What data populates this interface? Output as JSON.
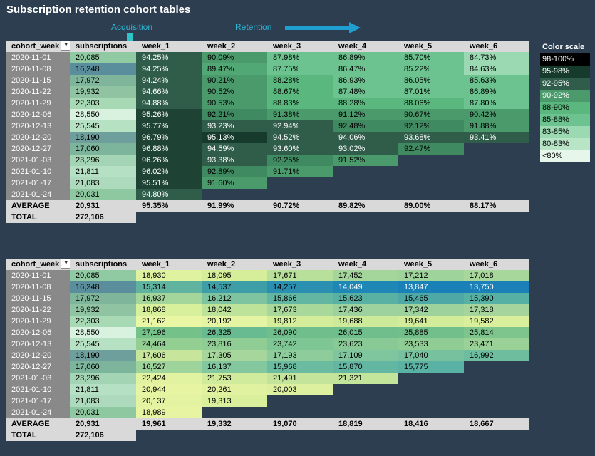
{
  "title": "Subscription retention cohort tables",
  "labels": {
    "acquisition": "Acquisition",
    "retention": "Retention"
  },
  "headers": [
    "cohort_week",
    "subscriptions",
    "week_1",
    "week_2",
    "week_3",
    "week_4",
    "week_5",
    "week_6"
  ],
  "cohorts": [
    "2020-11-01",
    "2020-11-08",
    "2020-11-15",
    "2020-11-22",
    "2020-11-29",
    "2020-12-06",
    "2020-12-13",
    "2020-12-20",
    "2020-12-27",
    "2021-01-03",
    "2021-01-10",
    "2021-01-17",
    "2021-01-24"
  ],
  "subscriptions": [
    "20,085",
    "16,248",
    "17,972",
    "19,932",
    "22,303",
    "28,550",
    "25,545",
    "18,190",
    "17,060",
    "23,296",
    "21,811",
    "21,083",
    "20,031"
  ],
  "subscription_colors": [
    "#8fcaa2",
    "#5b8e9c",
    "#7fb59a",
    "#8fc3a2",
    "#a8d9b5",
    "#d9f1df",
    "#b7e1c3",
    "#6e9f9c",
    "#7db49c",
    "#a3d4b3",
    "#b6e0c3",
    "#add9bc",
    "#8dc8a0"
  ],
  "retention": [
    [
      "94.25%",
      "90.09%",
      "87.98%",
      "86.89%",
      "85.70%",
      "84.73%"
    ],
    [
      "94.25%",
      "89.47%",
      "87.75%",
      "86.47%",
      "85.22%",
      "84.63%"
    ],
    [
      "94.24%",
      "90.21%",
      "88.28%",
      "86.93%",
      "86.05%",
      "85.63%"
    ],
    [
      "94.66%",
      "90.52%",
      "88.67%",
      "87.48%",
      "87.01%",
      "86.89%"
    ],
    [
      "94.88%",
      "90.53%",
      "88.83%",
      "88.28%",
      "88.06%",
      "87.80%"
    ],
    [
      "95.26%",
      "92.21%",
      "91.38%",
      "91.12%",
      "90.67%",
      "90.42%"
    ],
    [
      "95.77%",
      "93.23%",
      "92.94%",
      "92.48%",
      "92.12%",
      "91.88%"
    ],
    [
      "96.79%",
      "95.13%",
      "94.52%",
      "94.06%",
      "93.68%",
      "93.41%"
    ],
    [
      "96.88%",
      "94.59%",
      "93.60%",
      "93.02%",
      "92.47%"
    ],
    [
      "96.26%",
      "93.38%",
      "92.25%",
      "91.52%"
    ],
    [
      "96.02%",
      "92.89%",
      "91.71%"
    ],
    [
      "95.51%",
      "91.60%"
    ],
    [
      "94.80%"
    ]
  ],
  "retention_colors": [
    [
      "#2f5d4a",
      "#4a9a6c",
      "#6cc38f",
      "#6cc38f",
      "#6cc38f",
      "#9ad9b1"
    ],
    [
      "#2f5d4a",
      "#52a874",
      "#6cc38f",
      "#6cc38f",
      "#6cc38f",
      "#9ad9b1"
    ],
    [
      "#2f5d4a",
      "#4a9a6c",
      "#5ab87e",
      "#6cc38f",
      "#6cc38f",
      "#6cc38f"
    ],
    [
      "#2f5d4a",
      "#4a9a6c",
      "#5ab87e",
      "#6cc38f",
      "#6cc38f",
      "#6cc38f"
    ],
    [
      "#2f5d4a",
      "#4a9a6c",
      "#5ab87e",
      "#5ab87e",
      "#5ab87e",
      "#6cc38f"
    ],
    [
      "#1e4233",
      "#3f8a60",
      "#4a9a6c",
      "#4a9a6c",
      "#4a9a6c",
      "#4a9a6c"
    ],
    [
      "#1e4233",
      "#2f5d4a",
      "#2f5d4a",
      "#3f8a60",
      "#3f8a60",
      "#4a9a6c"
    ],
    [
      "#1e4233",
      "#163a2b",
      "#2f5d4a",
      "#2f5d4a",
      "#2f5d4a",
      "#2f5d4a"
    ],
    [
      "#1e4233",
      "#2f5d4a",
      "#2f5d4a",
      "#2f5d4a",
      "#3f8a60"
    ],
    [
      "#1e4233",
      "#2f5d4a",
      "#3f8a60",
      "#4a9a6c"
    ],
    [
      "#1e4233",
      "#3f8a60",
      "#4a9a6c"
    ],
    [
      "#1e4233",
      "#4a9a6c"
    ],
    [
      "#2f5d4a"
    ]
  ],
  "retention_average": [
    "AVERAGE",
    "20,931",
    "95.35%",
    "91.99%",
    "90.72%",
    "89.82%",
    "89.00%",
    "88.17%"
  ],
  "total": [
    "TOTAL",
    "272,106"
  ],
  "counts": [
    [
      "18,930",
      "18,095",
      "17,671",
      "17,452",
      "17,212",
      "17,018"
    ],
    [
      "15,314",
      "14,537",
      "14,257",
      "14,049",
      "13,847",
      "13,750"
    ],
    [
      "16,937",
      "16,212",
      "15,866",
      "15,623",
      "15,465",
      "15,390"
    ],
    [
      "18,868",
      "18,042",
      "17,673",
      "17,436",
      "17,342",
      "17,318"
    ],
    [
      "21,162",
      "20,192",
      "19,812",
      "19,688",
      "19,641",
      "19,582"
    ],
    [
      "27,196",
      "26,325",
      "26,090",
      "26,015",
      "25,885",
      "25,814"
    ],
    [
      "24,464",
      "23,816",
      "23,742",
      "23,623",
      "23,533",
      "23,471"
    ],
    [
      "17,606",
      "17,305",
      "17,193",
      "17,109",
      "17,040",
      "16,992"
    ],
    [
      "16,527",
      "16,137",
      "15,968",
      "15,870",
      "15,775"
    ],
    [
      "22,424",
      "21,753",
      "21,491",
      "21,321"
    ],
    [
      "20,944",
      "20,261",
      "20,003"
    ],
    [
      "20,137",
      "19,313"
    ],
    [
      "18,989"
    ]
  ],
  "count_colors": [
    [
      "#dff2a0",
      "#d6ee9a",
      "#b9e09a",
      "#a4d69c",
      "#9fd39c",
      "#a8d79b"
    ],
    [
      "#5fb39f",
      "#3d9ea8",
      "#2a8fb0",
      "#1f87b6",
      "#1a80b8",
      "#1b80b8"
    ],
    [
      "#a4d69c",
      "#7ec4a0",
      "#62b6a2",
      "#58b1a3",
      "#4ea9a6",
      "#56b0a4"
    ],
    [
      "#d8ef9b",
      "#bde29a",
      "#a9d89b",
      "#9dd19d",
      "#9ed29d",
      "#a5d59c"
    ],
    [
      "#e9f6a3",
      "#e4f4a2",
      "#d4ed9b",
      "#cdea9a",
      "#d3ec9a",
      "#d9ef9b"
    ],
    [
      "#74c18a",
      "#68bb90",
      "#6fbe8c",
      "#6fbe8c",
      "#72bf8b",
      "#7ec58d"
    ],
    [
      "#93cf93",
      "#8fcd94",
      "#7fc695",
      "#88c995",
      "#8fcd94",
      "#9ad197"
    ],
    [
      "#c7e69b",
      "#a6d69c",
      "#8ecc9c",
      "#7fc59e",
      "#77c19e",
      "#6ebd9f"
    ],
    [
      "#9fd39c",
      "#83c79e",
      "#6abba0",
      "#63b7a2",
      "#5ab2a4"
    ],
    [
      "#e1f2a0",
      "#d0eb9b",
      "#c4e49b",
      "#c2e49b"
    ],
    [
      "#e7f5a2",
      "#e0f2a0",
      "#dcf0a0"
    ],
    [
      "#e3f3a1",
      "#d9ef9b"
    ],
    [
      "#e7f5a2"
    ]
  ],
  "count_average": [
    "AVERAGE",
    "20,931",
    "19,961",
    "19,332",
    "19,070",
    "18,819",
    "18,416",
    "18,667"
  ],
  "legend": {
    "title": "Color scale",
    "items": [
      {
        "label": "98-100%",
        "bg": "#000000",
        "fg": "#ffffff"
      },
      {
        "label": "95-98%",
        "bg": "#163a2b",
        "fg": "#ffffff"
      },
      {
        "label": "92-95%",
        "bg": "#2f5d4a",
        "fg": "#ffffff"
      },
      {
        "label": "90-92%",
        "bg": "#4a9a6c",
        "fg": "#ffffff"
      },
      {
        "label": "88-90%",
        "bg": "#5ab87e",
        "fg": "#000000"
      },
      {
        "label": "85-88%",
        "bg": "#6cc38f",
        "fg": "#000000"
      },
      {
        "label": "83-85%",
        "bg": "#9ad9b1",
        "fg": "#000000"
      },
      {
        "label": "80-83%",
        "bg": "#b8e5c6",
        "fg": "#000000"
      },
      {
        "label": "<80%",
        "bg": "#e6f6ea",
        "fg": "#000000"
      }
    ]
  },
  "colors": {
    "background": "#2d3e50",
    "header_bg": "#d9d9d9",
    "cohort_bg": "#898989",
    "accent": "#2bb5d6"
  }
}
